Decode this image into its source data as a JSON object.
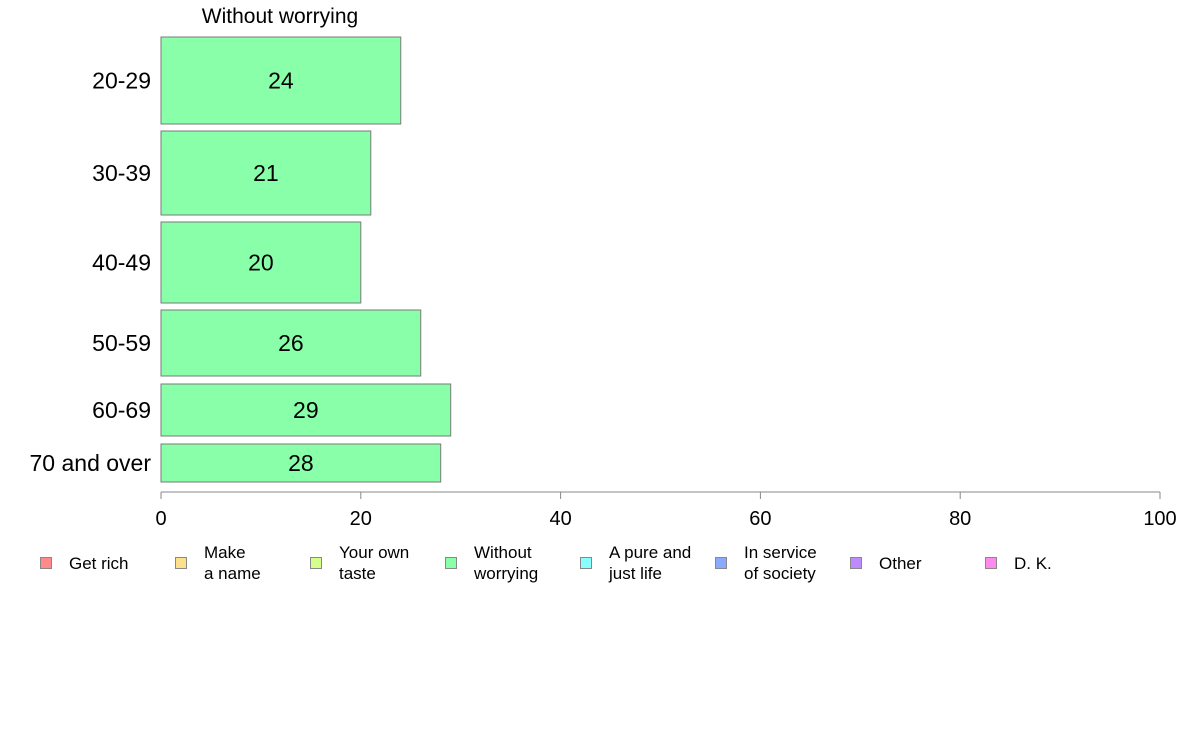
{
  "chart_data": {
    "type": "bar",
    "orientation": "horizontal",
    "title": "Without worrying",
    "categories": [
      "20-29",
      "30-39",
      "40-49",
      "50-59",
      "60-69",
      "70 and over"
    ],
    "series": [
      {
        "name": "Without worrying",
        "values": [
          24,
          21,
          20,
          26,
          29,
          28
        ],
        "color": "#8affaa"
      }
    ],
    "data_labels": [
      "24",
      "21",
      "20",
      "26",
      "29",
      "28"
    ],
    "xlim": [
      0,
      100
    ],
    "xticks": [
      "0",
      "20",
      "40",
      "60",
      "80",
      "100"
    ],
    "grid": false,
    "legend_position": "bottom",
    "legend": [
      {
        "label": "Get rich",
        "color": "#ff8a8a"
      },
      {
        "label": "Make\na name",
        "color": "#ffe08a"
      },
      {
        "label": "Your own\ntaste",
        "color": "#d4ff8a"
      },
      {
        "label": "Without\nworrying",
        "color": "#8affaa"
      },
      {
        "label": "A pure and\njust life",
        "color": "#8affff"
      },
      {
        "label": "In service\nof society",
        "color": "#8aaaff"
      },
      {
        "label": "Other",
        "color": "#c08aff"
      },
      {
        "label": "D. K.",
        "color": "#ff8aee"
      }
    ]
  }
}
